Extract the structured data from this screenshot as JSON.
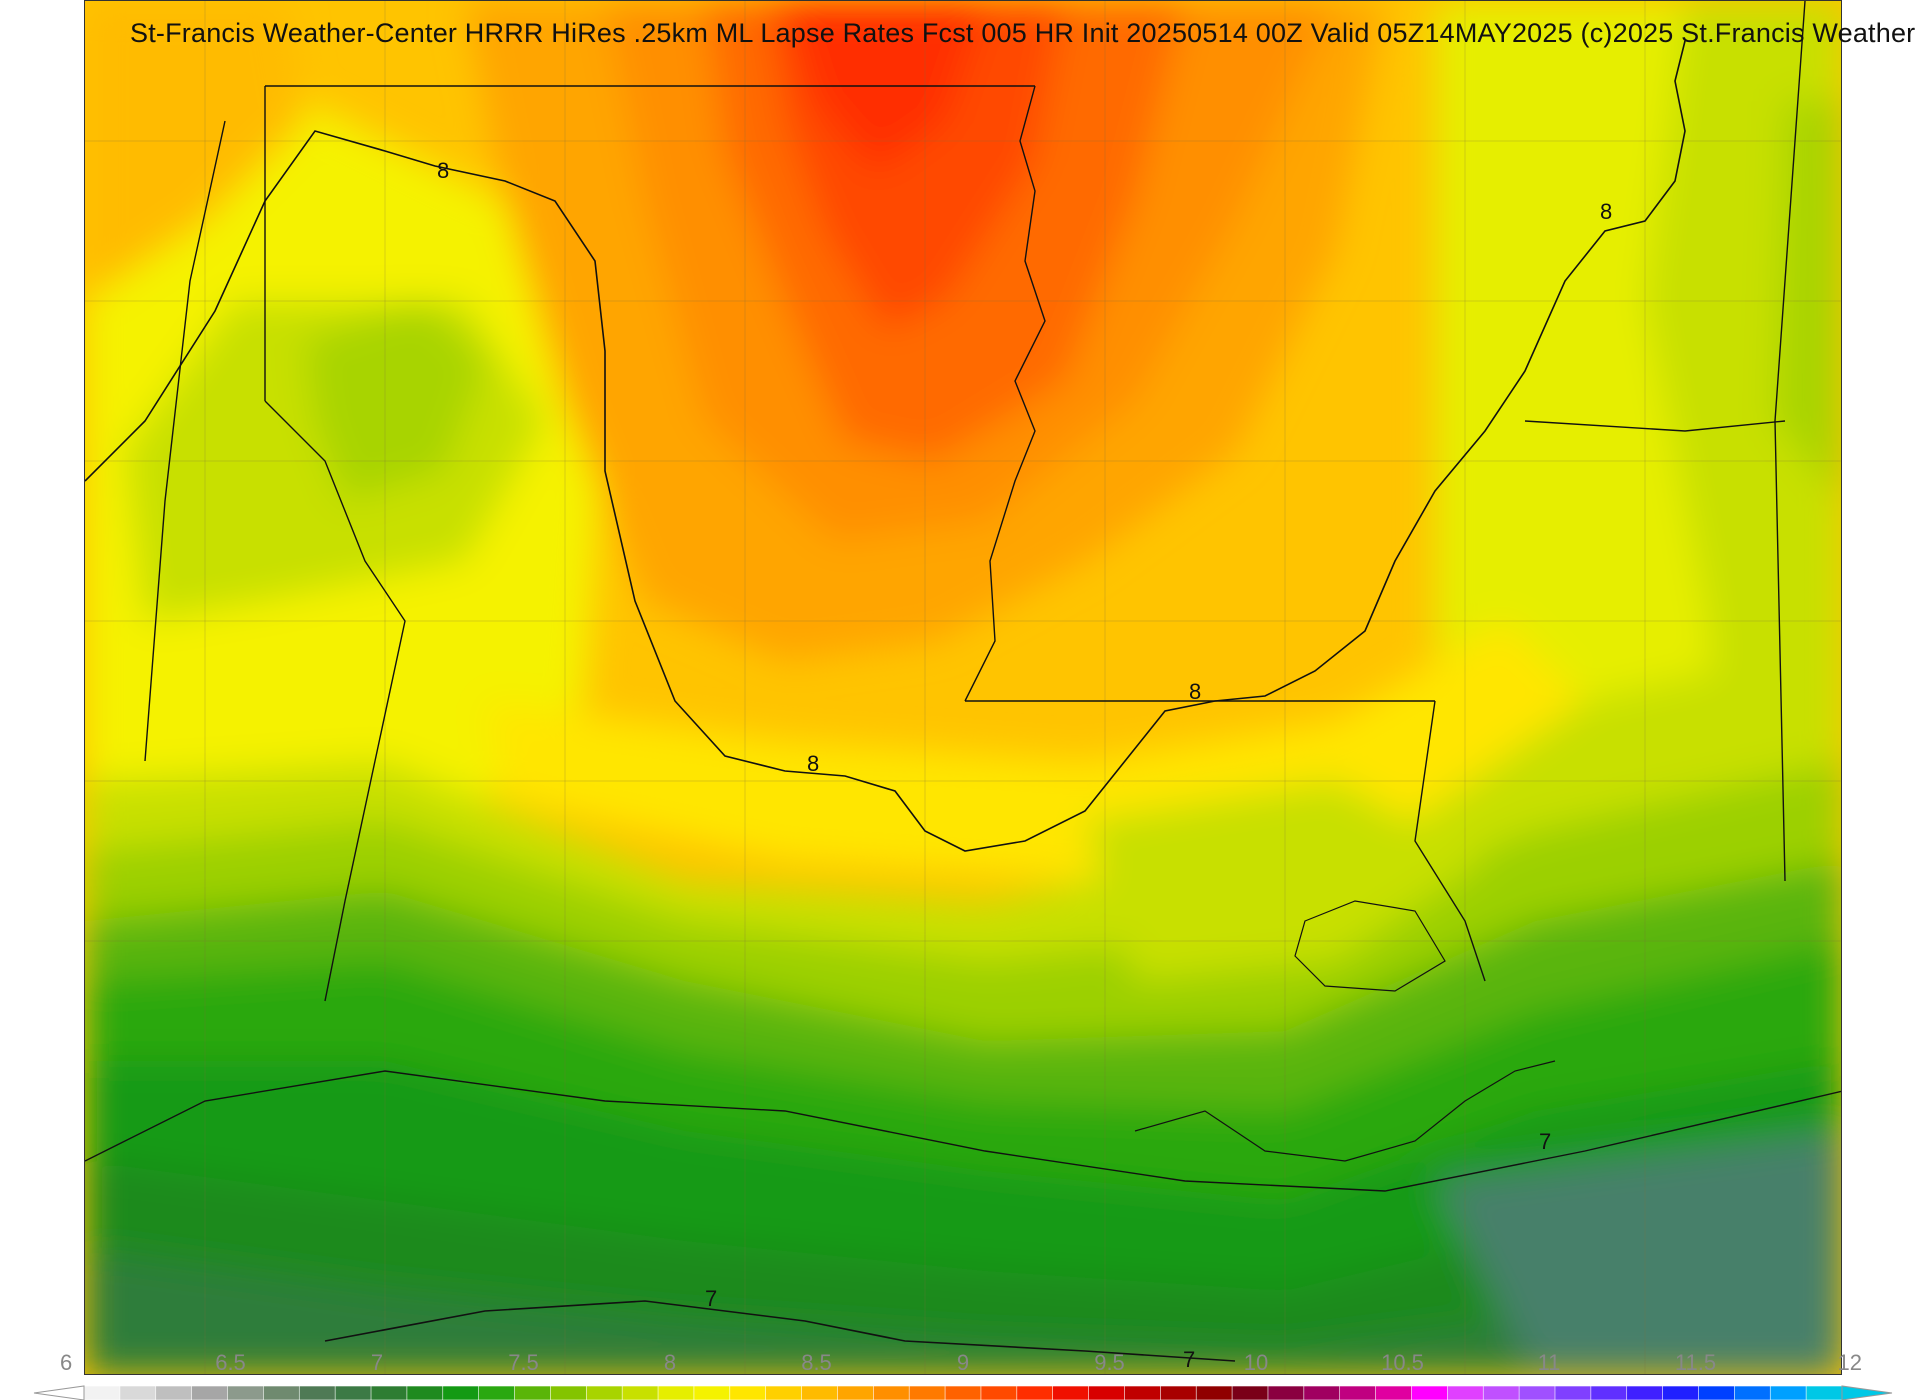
{
  "title": "St-Francis Weather-Center HRRR HiRes .25km ML Lapse Rates  Fcst 005 HR Init 20250514 00Z  Valid 05Z14MAY2025   (c)2025 St.Francis Weather",
  "contour_labels": [
    "8",
    "8",
    "8",
    "8",
    "7",
    "7",
    "7"
  ],
  "colorbar": {
    "min": 6,
    "max": 12,
    "tick_labels": [
      "6",
      "6.5",
      "7",
      "7.5",
      "8",
      "8.5",
      "9",
      "9.5",
      "10",
      "10.5",
      "11",
      "11.5",
      "12"
    ],
    "colors": [
      "#f2f2f2",
      "#d9d9d9",
      "#bfbfbf",
      "#a6a6a6",
      "#8c9a8c",
      "#6f8a6f",
      "#4f7a55",
      "#3c7a45",
      "#2e7d32",
      "#1f8a1f",
      "#139a13",
      "#2aa810",
      "#5ab508",
      "#84c400",
      "#a8d400",
      "#c8e000",
      "#e6ee00",
      "#f5f200",
      "#ffe600",
      "#ffd000",
      "#ffbb00",
      "#ffa500",
      "#ff8f00",
      "#ff7a00",
      "#ff6200",
      "#ff4a00",
      "#ff2e00",
      "#f01000",
      "#d80000",
      "#c00000",
      "#a80000",
      "#900000",
      "#7a0018",
      "#8a0040",
      "#a00060",
      "#c00080",
      "#e000a0",
      "#ff00ff",
      "#e040ff",
      "#c050ff",
      "#a050ff",
      "#8040ff",
      "#6030ff",
      "#4020ff",
      "#2020ff",
      "#0040ff",
      "#0070ff",
      "#00a0ff",
      "#00c8e6"
    ]
  },
  "legend_colors": {
    "dark_green": "#2f7d3b",
    "green": "#2a9418",
    "light_green": "#9cd000",
    "yellow": "#f2f200",
    "gold": "#ffd200",
    "orange": "#ffa000",
    "red_orange": "#ff5a00",
    "red": "#ff2000",
    "grey_green": "#47806a"
  }
}
